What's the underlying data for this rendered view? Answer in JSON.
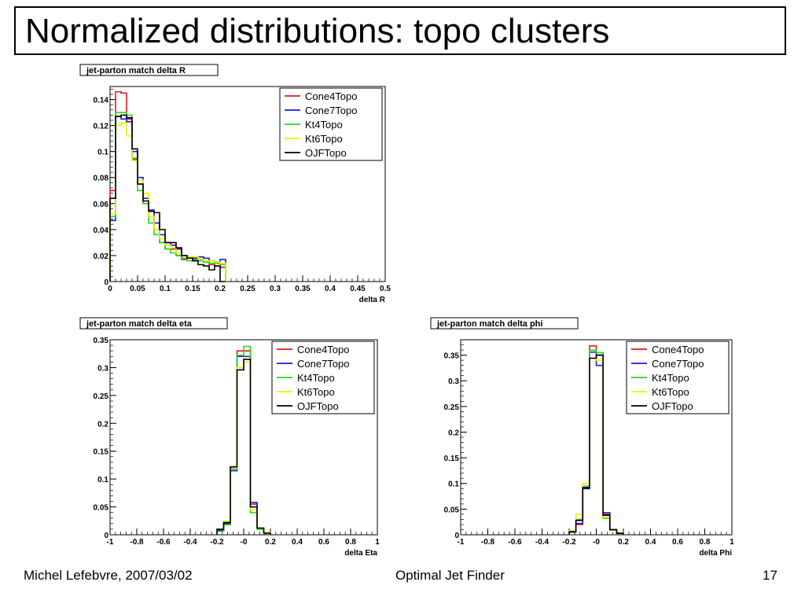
{
  "slide": {
    "title": "Normalized distributions: topo clusters",
    "footer_left": "Michel Lefebvre, 2007/03/02",
    "footer_center": "Optimal Jet Finder",
    "page_number": "17"
  },
  "legend_colors": {
    "Cone4Topo": "#e8141c",
    "Cone7Topo": "#1a1ad8",
    "Kt4Topo": "#22d822",
    "Kt6Topo": "#f0f000",
    "OJFTopo": "#000000"
  },
  "chart_data": [
    {
      "type": "step-histogram",
      "title": "jet-parton match delta R",
      "xlabel": "delta R",
      "ylabel": "",
      "xlim": [
        0,
        0.5
      ],
      "ylim": [
        0,
        0.15
      ],
      "xticks": [
        "0",
        "0.05",
        "0.1",
        "0.15",
        "0.2",
        "0.25",
        "0.3",
        "0.35",
        "0.4",
        "0.45",
        "0.5"
      ],
      "yticks": [
        "0",
        "0.02",
        "0.04",
        "0.06",
        "0.08",
        "0.1",
        "0.12",
        "0.14"
      ],
      "ytick_values": [
        0,
        0.02,
        0.04,
        0.06,
        0.08,
        0.1,
        0.12,
        0.14
      ],
      "legend": "top-right",
      "bin_edges": [
        0,
        0.01,
        0.02,
        0.03,
        0.04,
        0.05,
        0.06,
        0.07,
        0.08,
        0.09,
        0.1,
        0.11,
        0.12,
        0.13,
        0.14,
        0.15,
        0.16,
        0.17,
        0.18,
        0.19,
        0.2,
        0.21
      ],
      "series": [
        {
          "name": "Cone4Topo",
          "values": [
            0.07,
            0.146,
            0.145,
            0.125,
            0.094,
            0.075,
            0.06,
            0.05,
            0.04,
            0.03,
            0.025,
            0.025,
            0.02,
            0.017,
            0.018,
            0.016,
            0.017,
            0.015,
            0.013,
            0.012,
            0.011
          ]
        },
        {
          "name": "Cone7Topo",
          "values": [
            0.047,
            0.127,
            0.125,
            0.123,
            0.1,
            0.08,
            0.064,
            0.055,
            0.045,
            0.036,
            0.03,
            0.028,
            0.025,
            0.02,
            0.019,
            0.018,
            0.019,
            0.018,
            0.016,
            0.015,
            0.017
          ]
        },
        {
          "name": "Kt4Topo",
          "values": [
            0.05,
            0.13,
            0.13,
            0.128,
            0.095,
            0.07,
            0.06,
            0.045,
            0.036,
            0.03,
            0.025,
            0.022,
            0.02,
            0.018,
            0.016,
            0.017,
            0.016,
            0.015,
            0.014,
            0.014,
            0.013
          ]
        },
        {
          "name": "Kt6Topo",
          "values": [
            0.052,
            0.12,
            0.122,
            0.112,
            0.093,
            0.078,
            0.068,
            0.05,
            0.04,
            0.033,
            0.028,
            0.026,
            0.022,
            0.02,
            0.019,
            0.019,
            0.017,
            0.016,
            0.016,
            0.015,
            0.014
          ]
        },
        {
          "name": "OJFTopo",
          "values": [
            0.064,
            0.127,
            0.128,
            0.126,
            0.102,
            0.075,
            0.062,
            0.054,
            0.053,
            0.04,
            0.03,
            0.03,
            0.026,
            0.02,
            0.018,
            0.016,
            0.013,
            0.012,
            0.009,
            0.012,
            0.0
          ]
        }
      ]
    },
    {
      "type": "step-histogram",
      "title": "jet-parton match delta eta",
      "xlabel": "delta Eta",
      "ylabel": "",
      "xlim": [
        -1,
        1
      ],
      "ylim": [
        0,
        0.35
      ],
      "xticks": [
        "-1",
        "-0.8",
        "-0.6",
        "-0.4",
        "-0.2",
        "-0",
        "0.2",
        "0.4",
        "0.6",
        "0.8",
        "1"
      ],
      "yticks": [
        "0",
        "0.05",
        "0.1",
        "0.15",
        "0.2",
        "0.25",
        "0.3",
        "0.35"
      ],
      "ytick_values": [
        0,
        0.05,
        0.1,
        0.15,
        0.2,
        0.25,
        0.3,
        0.35
      ],
      "legend": "top-right",
      "bin_edges": [
        -0.2,
        -0.15,
        -0.1,
        -0.05,
        0,
        0.05,
        0.1,
        0.15,
        0.2
      ],
      "series": [
        {
          "name": "Cone4Topo",
          "values": [
            0.008,
            0.02,
            0.12,
            0.33,
            0.33,
            0.055,
            0.012,
            0.003
          ]
        },
        {
          "name": "Cone7Topo",
          "values": [
            0.008,
            0.02,
            0.115,
            0.32,
            0.32,
            0.058,
            0.012,
            0.003
          ]
        },
        {
          "name": "Kt4Topo",
          "values": [
            0.006,
            0.018,
            0.118,
            0.322,
            0.338,
            0.04,
            0.01,
            0.003
          ]
        },
        {
          "name": "Kt6Topo",
          "values": [
            0.01,
            0.025,
            0.12,
            0.3,
            0.31,
            0.045,
            0.012,
            0.004
          ]
        },
        {
          "name": "OJFTopo",
          "values": [
            0.01,
            0.022,
            0.122,
            0.296,
            0.315,
            0.05,
            0.012,
            0.003
          ]
        }
      ]
    },
    {
      "type": "step-histogram",
      "title": "jet-parton match delta phi",
      "xlabel": "delta Phi",
      "ylabel": "",
      "xlim": [
        -1,
        1
      ],
      "ylim": [
        0,
        0.38
      ],
      "xticks": [
        "-1",
        "-0.8",
        "-0.6",
        "-0.4",
        "-0.2",
        "-0",
        "0.2",
        "0.4",
        "0.6",
        "0.8",
        "1"
      ],
      "yticks": [
        "0",
        "0.05",
        "0.1",
        "0.15",
        "0.2",
        "0.25",
        "0.3",
        "0.35"
      ],
      "ytick_values": [
        0,
        0.05,
        0.1,
        0.15,
        0.2,
        0.25,
        0.3,
        0.35
      ],
      "legend": "top-right",
      "bin_edges": [
        -0.2,
        -0.15,
        -0.1,
        -0.05,
        0,
        0.05,
        0.1,
        0.15,
        0.2
      ],
      "series": [
        {
          "name": "Cone4Topo",
          "values": [
            0.005,
            0.02,
            0.09,
            0.368,
            0.35,
            0.04,
            0.01,
            0.003
          ]
        },
        {
          "name": "Cone7Topo",
          "values": [
            0.005,
            0.022,
            0.09,
            0.356,
            0.33,
            0.043,
            0.01,
            0.003
          ]
        },
        {
          "name": "Kt4Topo",
          "values": [
            0.006,
            0.03,
            0.095,
            0.36,
            0.355,
            0.032,
            0.009,
            0.003
          ]
        },
        {
          "name": "Kt6Topo",
          "values": [
            0.008,
            0.04,
            0.1,
            0.344,
            0.34,
            0.034,
            0.01,
            0.004
          ]
        },
        {
          "name": "OJFTopo",
          "values": [
            0.006,
            0.028,
            0.092,
            0.344,
            0.35,
            0.038,
            0.01,
            0.003
          ]
        }
      ]
    }
  ]
}
